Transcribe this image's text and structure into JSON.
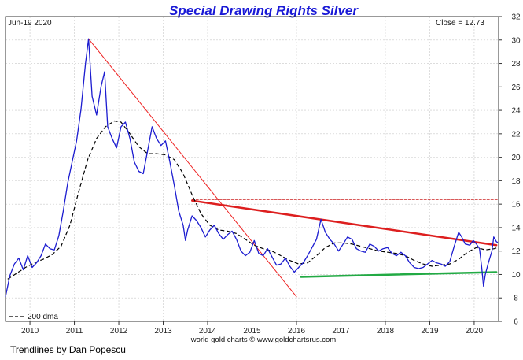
{
  "chart_data": {
    "type": "line",
    "title": "Special Drawing Rights Silver",
    "date_label": "Jun-19  2020",
    "close_label": "Close = 12.73",
    "credit": "world gold charts © www.goldchartsrus.com",
    "footer": "Trendlines by Dan Popescu",
    "xlim": [
      2009.45,
      2020.55
    ],
    "ylim": [
      6,
      32
    ],
    "x_ticks": [
      {
        "value": 2010,
        "label": "2010"
      },
      {
        "value": 2011,
        "label": "2011"
      },
      {
        "value": 2012,
        "label": "2012"
      },
      {
        "value": 2013,
        "label": "2013"
      },
      {
        "value": 2014,
        "label": "2014"
      },
      {
        "value": 2015,
        "label": "2015"
      },
      {
        "value": 2016,
        "label": "2016"
      },
      {
        "value": 2017,
        "label": "2017"
      },
      {
        "value": 2018,
        "label": "2018"
      },
      {
        "value": 2019,
        "label": "2019"
      },
      {
        "value": 2020,
        "label": "2020"
      }
    ],
    "y_ticks": [
      {
        "value": 6,
        "label": "6"
      },
      {
        "value": 8,
        "label": "8"
      },
      {
        "value": 10,
        "label": "10"
      },
      {
        "value": 12,
        "label": "12"
      },
      {
        "value": 14,
        "label": "14"
      },
      {
        "value": 16,
        "label": "16"
      },
      {
        "value": 18,
        "label": "18"
      },
      {
        "value": 20,
        "label": "20"
      },
      {
        "value": 22,
        "label": "22"
      },
      {
        "value": 24,
        "label": "24"
      },
      {
        "value": 26,
        "label": "26"
      },
      {
        "value": 28,
        "label": "28"
      },
      {
        "value": 30,
        "label": "30"
      },
      {
        "value": 32,
        "label": "32"
      }
    ],
    "legend": {
      "label": "200 dma",
      "placement": "bottom-left"
    },
    "series": [
      {
        "name": "SDR Silver price",
        "color": "#1c1cd0",
        "points": [
          [
            2009.45,
            8.1
          ],
          [
            2009.55,
            9.9
          ],
          [
            2009.65,
            10.9
          ],
          [
            2009.75,
            11.4
          ],
          [
            2009.85,
            10.4
          ],
          [
            2009.95,
            11.6
          ],
          [
            2010.05,
            10.6
          ],
          [
            2010.15,
            11.0
          ],
          [
            2010.25,
            11.6
          ],
          [
            2010.35,
            12.6
          ],
          [
            2010.45,
            12.2
          ],
          [
            2010.55,
            12.1
          ],
          [
            2010.65,
            13.3
          ],
          [
            2010.75,
            15.4
          ],
          [
            2010.85,
            17.8
          ],
          [
            2010.95,
            19.6
          ],
          [
            2011.05,
            21.4
          ],
          [
            2011.15,
            24.1
          ],
          [
            2011.25,
            28.0
          ],
          [
            2011.32,
            30.1
          ],
          [
            2011.4,
            25.2
          ],
          [
            2011.5,
            23.6
          ],
          [
            2011.6,
            26.0
          ],
          [
            2011.68,
            27.3
          ],
          [
            2011.75,
            22.6
          ],
          [
            2011.85,
            21.6
          ],
          [
            2011.95,
            20.8
          ],
          [
            2012.05,
            22.6
          ],
          [
            2012.15,
            23.0
          ],
          [
            2012.25,
            21.6
          ],
          [
            2012.35,
            19.6
          ],
          [
            2012.45,
            18.8
          ],
          [
            2012.55,
            18.6
          ],
          [
            2012.65,
            20.6
          ],
          [
            2012.75,
            22.6
          ],
          [
            2012.85,
            21.6
          ],
          [
            2012.95,
            21.0
          ],
          [
            2013.05,
            21.4
          ],
          [
            2013.15,
            19.6
          ],
          [
            2013.25,
            17.6
          ],
          [
            2013.35,
            15.4
          ],
          [
            2013.45,
            14.2
          ],
          [
            2013.5,
            12.9
          ],
          [
            2013.55,
            13.8
          ],
          [
            2013.65,
            15.0
          ],
          [
            2013.75,
            14.6
          ],
          [
            2013.85,
            14.0
          ],
          [
            2013.95,
            13.2
          ],
          [
            2014.05,
            13.8
          ],
          [
            2014.15,
            14.2
          ],
          [
            2014.25,
            13.5
          ],
          [
            2014.35,
            13.0
          ],
          [
            2014.45,
            13.4
          ],
          [
            2014.55,
            13.7
          ],
          [
            2014.65,
            13.0
          ],
          [
            2014.75,
            12.0
          ],
          [
            2014.85,
            11.6
          ],
          [
            2014.95,
            11.9
          ],
          [
            2015.05,
            12.9
          ],
          [
            2015.15,
            11.8
          ],
          [
            2015.25,
            11.6
          ],
          [
            2015.35,
            12.2
          ],
          [
            2015.45,
            11.5
          ],
          [
            2015.55,
            10.8
          ],
          [
            2015.65,
            10.9
          ],
          [
            2015.75,
            11.4
          ],
          [
            2015.85,
            10.7
          ],
          [
            2015.95,
            10.2
          ],
          [
            2016.05,
            10.6
          ],
          [
            2016.15,
            11.0
          ],
          [
            2016.25,
            11.6
          ],
          [
            2016.35,
            12.3
          ],
          [
            2016.45,
            13.0
          ],
          [
            2016.55,
            14.7
          ],
          [
            2016.65,
            13.6
          ],
          [
            2016.75,
            13.0
          ],
          [
            2016.85,
            12.6
          ],
          [
            2016.95,
            12.0
          ],
          [
            2017.05,
            12.6
          ],
          [
            2017.15,
            13.2
          ],
          [
            2017.25,
            13.0
          ],
          [
            2017.35,
            12.2
          ],
          [
            2017.45,
            12.0
          ],
          [
            2017.55,
            11.9
          ],
          [
            2017.65,
            12.6
          ],
          [
            2017.75,
            12.4
          ],
          [
            2017.85,
            12.0
          ],
          [
            2017.95,
            12.2
          ],
          [
            2018.05,
            12.3
          ],
          [
            2018.15,
            11.8
          ],
          [
            2018.25,
            11.6
          ],
          [
            2018.35,
            11.9
          ],
          [
            2018.45,
            11.6
          ],
          [
            2018.55,
            11.0
          ],
          [
            2018.65,
            10.6
          ],
          [
            2018.75,
            10.5
          ],
          [
            2018.85,
            10.6
          ],
          [
            2018.95,
            10.9
          ],
          [
            2019.05,
            11.2
          ],
          [
            2019.15,
            11.0
          ],
          [
            2019.25,
            10.9
          ],
          [
            2019.35,
            10.7
          ],
          [
            2019.45,
            11.1
          ],
          [
            2019.55,
            12.4
          ],
          [
            2019.65,
            13.6
          ],
          [
            2019.72,
            13.2
          ],
          [
            2019.8,
            12.6
          ],
          [
            2019.9,
            12.5
          ],
          [
            2019.98,
            12.9
          ],
          [
            2020.05,
            12.6
          ],
          [
            2020.12,
            12.2
          ],
          [
            2020.17,
            10.6
          ],
          [
            2020.21,
            9.0
          ],
          [
            2020.25,
            10.0
          ],
          [
            2020.32,
            11.0
          ],
          [
            2020.4,
            12.0
          ],
          [
            2020.44,
            13.2
          ],
          [
            2020.5,
            12.8
          ],
          [
            2020.53,
            12.73
          ]
        ]
      },
      {
        "name": "200 dma",
        "color": "#000000",
        "points": [
          [
            2009.5,
            9.6
          ],
          [
            2009.7,
            10.1
          ],
          [
            2009.9,
            10.6
          ],
          [
            2010.1,
            11.0
          ],
          [
            2010.3,
            11.3
          ],
          [
            2010.5,
            11.7
          ],
          [
            2010.7,
            12.4
          ],
          [
            2010.9,
            14.2
          ],
          [
            2011.1,
            17.1
          ],
          [
            2011.3,
            19.8
          ],
          [
            2011.5,
            21.6
          ],
          [
            2011.7,
            22.6
          ],
          [
            2011.9,
            23.1
          ],
          [
            2012.05,
            23.0
          ],
          [
            2012.25,
            22.0
          ],
          [
            2012.45,
            20.9
          ],
          [
            2012.65,
            20.3
          ],
          [
            2012.85,
            20.3
          ],
          [
            2013.05,
            20.2
          ],
          [
            2013.25,
            19.8
          ],
          [
            2013.45,
            18.6
          ],
          [
            2013.65,
            16.8
          ],
          [
            2013.85,
            15.2
          ],
          [
            2014.05,
            14.2
          ],
          [
            2014.25,
            13.8
          ],
          [
            2014.45,
            13.7
          ],
          [
            2014.65,
            13.5
          ],
          [
            2014.85,
            13.0
          ],
          [
            2015.05,
            12.5
          ],
          [
            2015.25,
            12.2
          ],
          [
            2015.45,
            12.0
          ],
          [
            2015.65,
            11.6
          ],
          [
            2015.85,
            11.2
          ],
          [
            2016.05,
            10.9
          ],
          [
            2016.25,
            11.0
          ],
          [
            2016.45,
            11.6
          ],
          [
            2016.65,
            12.3
          ],
          [
            2016.85,
            12.7
          ],
          [
            2017.05,
            12.7
          ],
          [
            2017.25,
            12.6
          ],
          [
            2017.45,
            12.4
          ],
          [
            2017.65,
            12.2
          ],
          [
            2017.85,
            12.0
          ],
          [
            2018.05,
            11.9
          ],
          [
            2018.25,
            11.8
          ],
          [
            2018.45,
            11.6
          ],
          [
            2018.65,
            11.2
          ],
          [
            2018.85,
            10.9
          ],
          [
            2019.05,
            10.7
          ],
          [
            2019.25,
            10.8
          ],
          [
            2019.45,
            10.9
          ],
          [
            2019.65,
            11.3
          ],
          [
            2019.85,
            11.9
          ],
          [
            2020.05,
            12.3
          ],
          [
            2020.25,
            12.1
          ],
          [
            2020.45,
            12.2
          ],
          [
            2020.53,
            12.3
          ]
        ]
      }
    ],
    "trendlines": [
      {
        "name": "downtrend-from-2011-peak",
        "color": "#ee2222",
        "from": [
          2011.32,
          30.1
        ],
        "to": [
          2016.0,
          8.1
        ],
        "width": 1
      },
      {
        "name": "lower-highs-resistance",
        "color": "#dd1f1f",
        "from": [
          2013.65,
          16.3
        ],
        "to": [
          2020.5,
          12.5
        ],
        "width": 2.5
      },
      {
        "name": "horizontal-resistance",
        "color": "#cc2222",
        "from": [
          2013.65,
          16.4
        ],
        "to": [
          2020.55,
          16.4
        ],
        "width": 1,
        "dashed": true
      },
      {
        "name": "support-line",
        "color": "#22aa44",
        "from": [
          2016.1,
          9.8
        ],
        "to": [
          2020.5,
          10.2
        ],
        "width": 2.5
      }
    ]
  }
}
